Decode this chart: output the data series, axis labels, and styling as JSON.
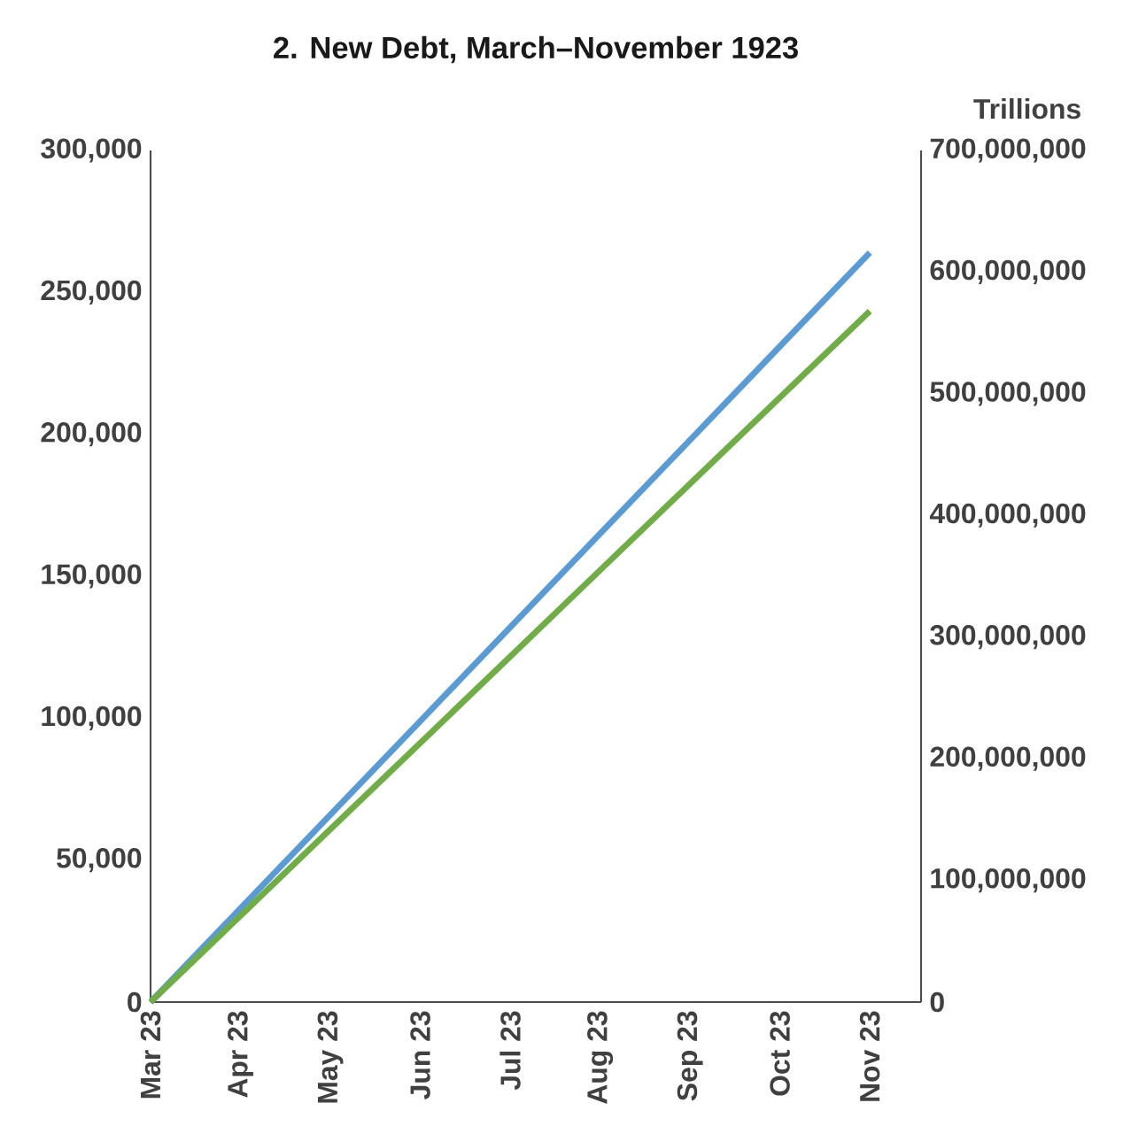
{
  "chart_data": {
    "type": "line",
    "title": "2. New Debt, March–November 1923",
    "y2label": "Trillions",
    "categories": [
      "Mar 23",
      "Apr 23",
      "May 23",
      "Jun 23",
      "Jul 23",
      "Aug 23",
      "Sep 23",
      "Oct 23",
      "Nov 23"
    ],
    "series": [
      {
        "color": "#5b9bd5",
        "values": [
          0,
          33000,
          66000,
          99000,
          132000,
          165000,
          198000,
          231000,
          264000
        ]
      },
      {
        "color": "#70ad47",
        "axis": "y2",
        "values": [
          0,
          71000000,
          142000000,
          213000000,
          284000000,
          355000000,
          426000000,
          497000000,
          568000000
        ]
      }
    ],
    "ylim": [
      0,
      300000
    ],
    "yticks": [
      {
        "value": 0,
        "label": "0"
      },
      {
        "value": 50000,
        "label": "50,000"
      },
      {
        "value": 100000,
        "label": "100,000"
      },
      {
        "value": 150000,
        "label": "150,000"
      },
      {
        "value": 200000,
        "label": "200,000"
      },
      {
        "value": 250000,
        "label": "250,000"
      },
      {
        "value": 300000,
        "label": "300,000"
      }
    ],
    "y2lim": [
      0,
      700000000
    ],
    "y2ticks": [
      {
        "value": 0,
        "label": "0"
      },
      {
        "value": 100000000,
        "label": "100,000,000"
      },
      {
        "value": 200000000,
        "label": "200,000,000"
      },
      {
        "value": 300000000,
        "label": "300,000,000"
      },
      {
        "value": 400000000,
        "label": "400,000,000"
      },
      {
        "value": 500000000,
        "label": "500,000,000"
      },
      {
        "value": 600000000,
        "label": "600,000,000"
      },
      {
        "value": 700000000,
        "label": "700,000,000"
      }
    ],
    "grid": false,
    "marker": "none",
    "line_style": "solid"
  }
}
